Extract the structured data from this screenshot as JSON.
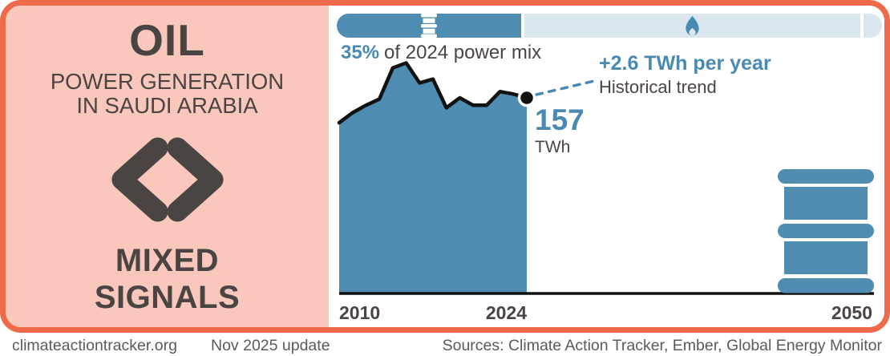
{
  "colors": {
    "accent_orange": "#ee6a4a",
    "panel_pink": "#f9c7bb",
    "dark_text": "#4a4443",
    "blue_fill": "#4e8cb1",
    "blue_text": "#4a8ab2",
    "light_blue": "#dbe7ee",
    "footer_gray": "#5c5a58",
    "line_black": "#111111"
  },
  "left_panel": {
    "fuel_title": "OIL",
    "subtitle_line1": "POWER GENERATION",
    "subtitle_line2": "IN SAUDI ARABIA",
    "verdict_icon": "mixed-signals-chevrons-icon",
    "verdict_line1": "MIXED",
    "verdict_line2": "SIGNALS"
  },
  "power_mix_bar": {
    "oil_segment_icon": "oil-barrel-icon",
    "other_segment_icon": "gas-flame-icon",
    "oil_share_percent": "35%",
    "caption_rest": "of 2024 power mix"
  },
  "chart_data": {
    "type": "area",
    "title": "Oil power generation in Saudi Arabia",
    "series_name": "Oil power generation",
    "unit": "TWh",
    "x": [
      2010,
      2011,
      2012,
      2013,
      2014,
      2015,
      2016,
      2017,
      2018,
      2019,
      2020,
      2021,
      2022,
      2023,
      2024
    ],
    "values": [
      137,
      145,
      151,
      156,
      181,
      185,
      169,
      172,
      149,
      157,
      151,
      151,
      162,
      160,
      157
    ],
    "x_ticks": [
      "2010",
      "2024",
      "2050"
    ],
    "xlim": [
      2010,
      2050
    ],
    "ylim": [
      0,
      200
    ],
    "grid": false,
    "legend": "none",
    "end_point": {
      "year": 2024,
      "value": 157,
      "label": "157",
      "unit_label": "TWh"
    },
    "trend_annotation": {
      "headline": "+2.6 TWh per year",
      "subline": "Historical trend"
    }
  },
  "footer": {
    "site": "climateactiontracker.org",
    "update": "Nov 2025 update",
    "sources": "Sources: Climate Action Tracker, Ember, Global Energy Monitor"
  }
}
